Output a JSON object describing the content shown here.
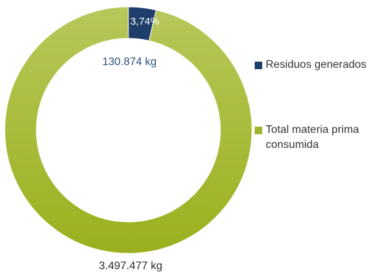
{
  "chart_data": {
    "type": "pie",
    "donut": true,
    "series": [
      {
        "name": "Residuos generados",
        "value": 130874,
        "value_label": "130.874 kg",
        "color": "#1f3e6b"
      },
      {
        "name": "Total materia prima consumida",
        "value": 3497477,
        "value_label": "3.497.477 kg",
        "color": "#a0b62a"
      }
    ],
    "slice_labels": [
      "3,74%"
    ],
    "legend_position": "right"
  }
}
